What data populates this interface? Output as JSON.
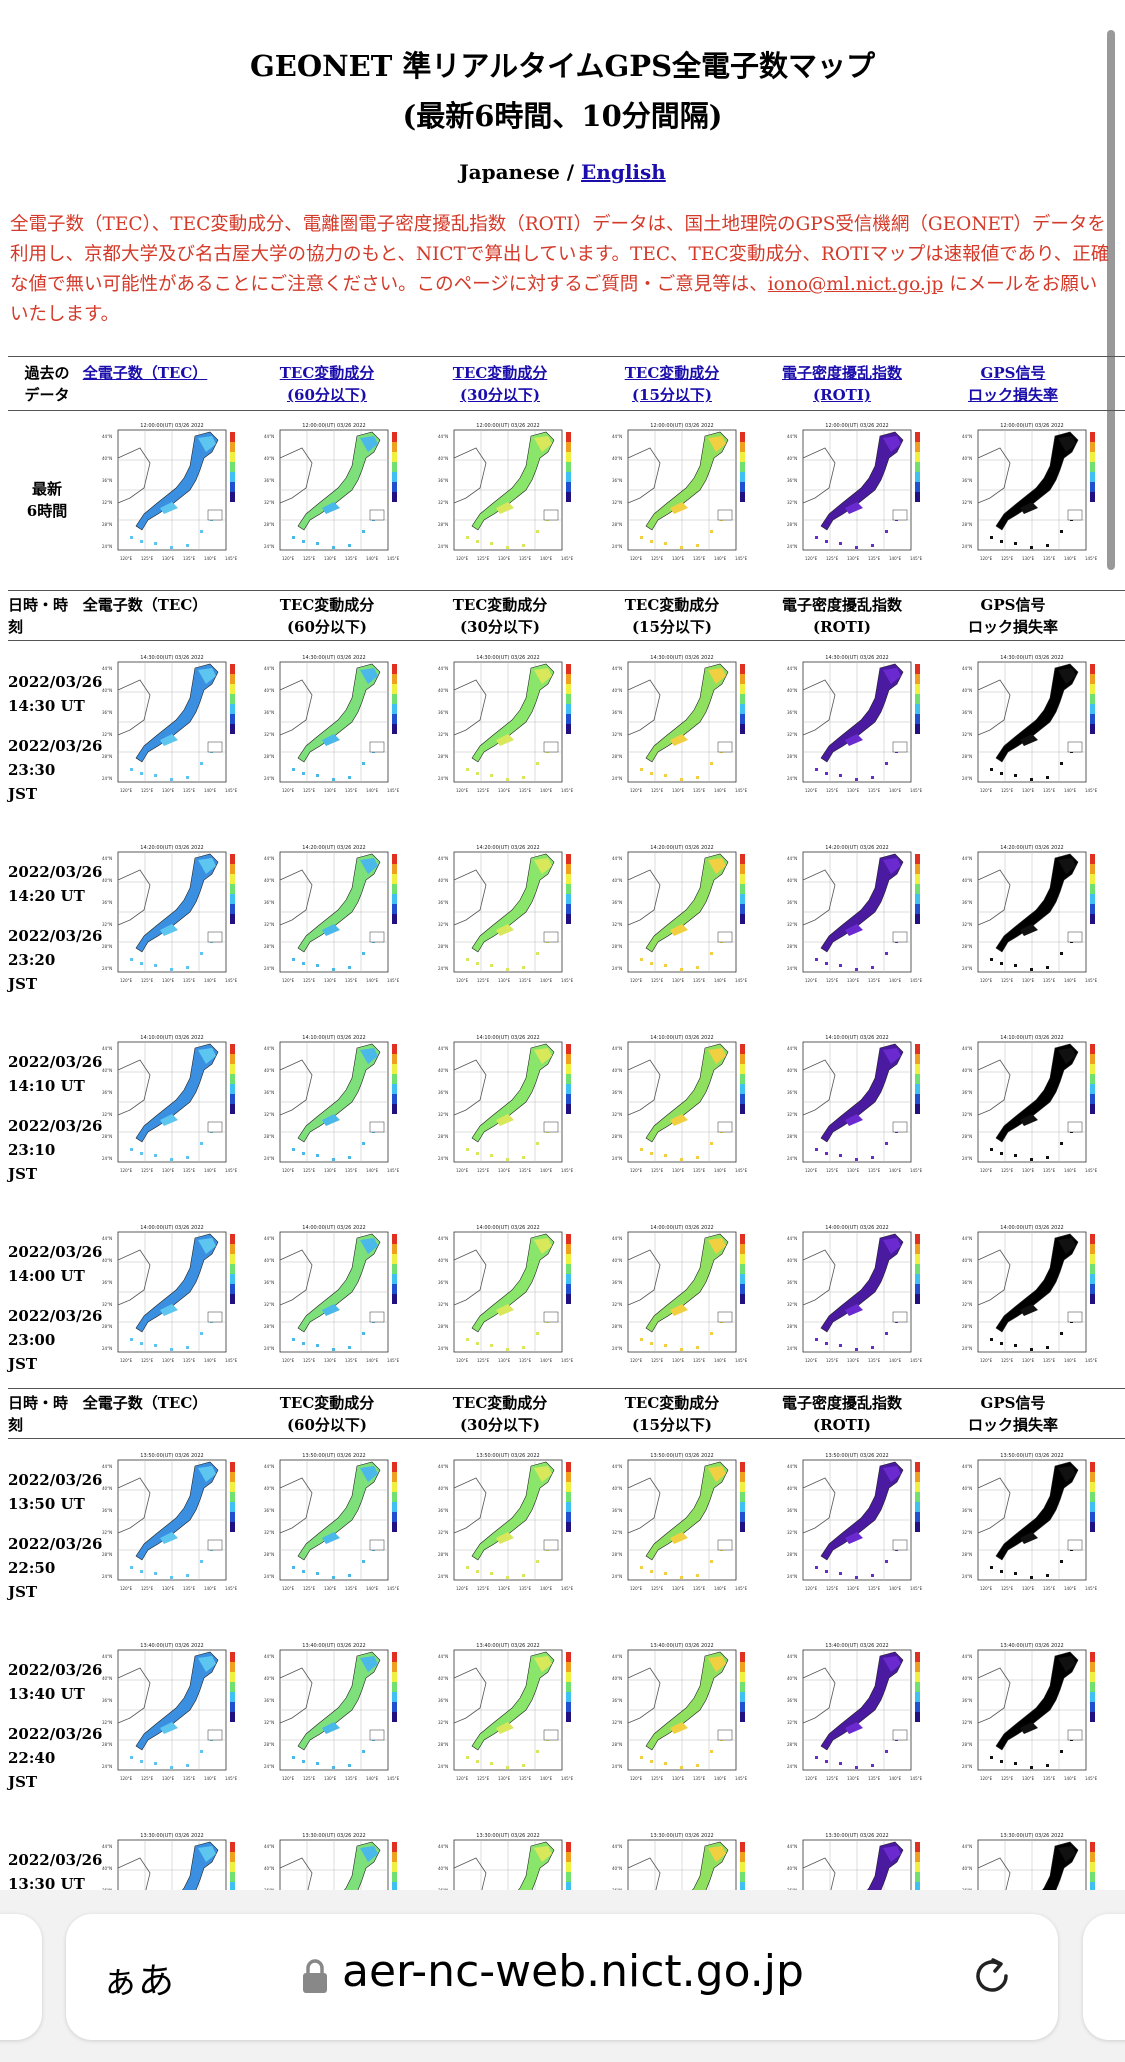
{
  "page": {
    "title_line1": "GEONET 準リアルタイムGPS全電子数マップ",
    "title_line2": "(最新6時間、10分間隔)",
    "lang_current": "Japanese /",
    "lang_link": "English",
    "notice": "全電子数（TEC）、TEC変動成分、電離圏電子密度擾乱指数（ROTI）データは、国土地理院のGPS受信機網（GEONET）データを利用し、京都大学及び名古屋大学の協力のもと、NICTで算出しています。TEC、TEC変動成分、ROTIマップは速報値であり、正確な値で無い可能性があることにご注意ください。このページに対するご質問・ご意見等は、",
    "notice_email": "iono@ml.nict.go.jp",
    "notice_end": " にメールをお願いいたします。"
  },
  "link_header": {
    "first": "過去の\nデータ",
    "cols": [
      "全電子数（TEC）",
      "TEC変動成分\n(60分以下)",
      "TEC変動成分\n(30分以下)",
      "TEC変動成分\n(15分以下)",
      "電子密度擾乱指数\n(ROTI)",
      "GPS信号\nロック損失率"
    ]
  },
  "latest_label": "最新\n6時間",
  "table_header": {
    "first": "日時・時\n刻",
    "cols": [
      "全電子数（TEC）",
      "TEC変動成分\n(60分以下)",
      "TEC変動成分\n(30分以下)",
      "TEC変動成分\n(15分以下)",
      "電子密度擾乱指数\n(ROTI)",
      "GPS信号\nロック損失率"
    ]
  },
  "rows_group1": [
    {
      "ut": "2022/03/26\n14:30 UT",
      "jst": "2022/03/26\n23:30\nJST",
      "map_time": "14:30:00(UT) 03/26 2022"
    },
    {
      "ut": "2022/03/26\n14:20 UT",
      "jst": "2022/03/26\n23:20\nJST",
      "map_time": "14:20:00(UT) 03/26 2022"
    },
    {
      "ut": "2022/03/26\n14:10 UT",
      "jst": "2022/03/26\n23:10\nJST",
      "map_time": "14:10:00(UT) 03/26 2022"
    },
    {
      "ut": "2022/03/26\n14:00 UT",
      "jst": "2022/03/26\n23:00\nJST",
      "map_time": "14:00:00(UT) 03/26 2022"
    }
  ],
  "rows_group2": [
    {
      "ut": "2022/03/26\n13:50 UT",
      "jst": "2022/03/26\n22:50\nJST",
      "map_time": "13:50:00(UT) 03/26 2022"
    },
    {
      "ut": "2022/03/26\n13:40 UT",
      "jst": "2022/03/26\n22:40\nJST",
      "map_time": "13:40:00(UT) 03/26 2022"
    },
    {
      "ut": "2022/03/26\n13:30 UT",
      "jst": "",
      "map_time": "13:30:00(UT) 03/26 2022"
    }
  ],
  "latest_map_time": "12:00:00(UT) 03/26 2022",
  "map_palettes": [
    {
      "name": "tec",
      "fill": "#3a8fe0",
      "accent": "#5cc6f0"
    },
    {
      "name": "dtec60",
      "fill": "#7ee07a",
      "accent": "#4ab8e8"
    },
    {
      "name": "dtec30",
      "fill": "#8ae66a",
      "accent": "#d8e85a"
    },
    {
      "name": "dtec15",
      "fill": "#90e060",
      "accent": "#f0d040"
    },
    {
      "name": "roti",
      "fill": "#4a1aa0",
      "accent": "#6a2ad0"
    },
    {
      "name": "lol",
      "fill": "#000000",
      "accent": "#111111"
    }
  ],
  "browser": {
    "aa": "ぁあ",
    "url": "aer-nc-web.nict.go.jp"
  }
}
